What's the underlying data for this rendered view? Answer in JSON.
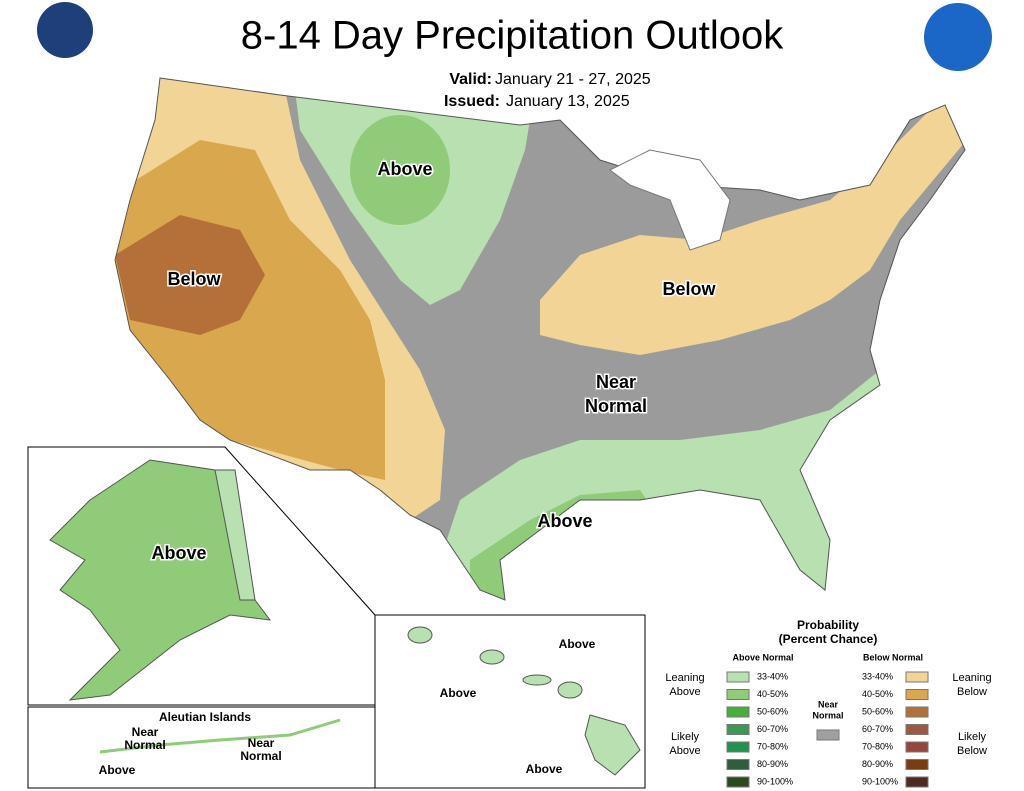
{
  "header": {
    "title": "8-14 Day Precipitation Outlook",
    "valid_label": "Valid:",
    "valid": "January 21 - 27, 2025",
    "issued_label": "Issued:",
    "issued": "January 13, 2025"
  },
  "conus_labels": [
    "Above",
    "Below",
    "Below",
    "Near",
    "Normal",
    "Above"
  ],
  "alaska_labels": [
    "Above"
  ],
  "aleutian": {
    "title": "Aleutian Islands",
    "labels": [
      "Near",
      "Normal",
      "Near",
      "Normal",
      "Above"
    ]
  },
  "hawaii_labels": [
    "Above",
    "Above",
    "Above"
  ],
  "legend": {
    "title": "Probability",
    "subtitle": "(Percent Chance)",
    "above_header": "Above Normal",
    "below_header": "Below Normal",
    "near": [
      "Near",
      "Normal"
    ],
    "near_color": "#a0a0a0",
    "leaning_above": [
      "Leaning",
      "Above"
    ],
    "likely_above": [
      "Likely",
      "Above"
    ],
    "leaning_below": [
      "Leaning",
      "Below"
    ],
    "likely_below": [
      "Likely",
      "Below"
    ],
    "above_items": [
      {
        "label": "33-40%",
        "color": "#b8e0b0"
      },
      {
        "label": "40-50%",
        "color": "#8fcb78"
      },
      {
        "label": "50-60%",
        "color": "#44b03a"
      },
      {
        "label": "60-70%",
        "color": "#3a9a55"
      },
      {
        "label": "70-80%",
        "color": "#1e9450"
      },
      {
        "label": "80-90%",
        "color": "#2f5e3c"
      },
      {
        "label": "90-100%",
        "color": "#284a1c"
      }
    ],
    "below_items": [
      {
        "label": "33-40%",
        "color": "#f2d496"
      },
      {
        "label": "40-50%",
        "color": "#d9a84e"
      },
      {
        "label": "50-60%",
        "color": "#b5703a"
      },
      {
        "label": "60-70%",
        "color": "#9b5a41"
      },
      {
        "label": "70-80%",
        "color": "#98463c"
      },
      {
        "label": "80-90%",
        "color": "#7a3d12"
      },
      {
        "label": "90-100%",
        "color": "#4f2a22"
      }
    ]
  }
}
